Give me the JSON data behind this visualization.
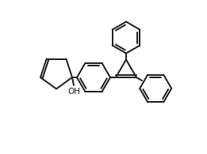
{
  "bg_color": "#ffffff",
  "line_color": "#1a1a1a",
  "lw": 1.4,
  "figsize": [
    2.61,
    1.95
  ],
  "dpi": 100
}
